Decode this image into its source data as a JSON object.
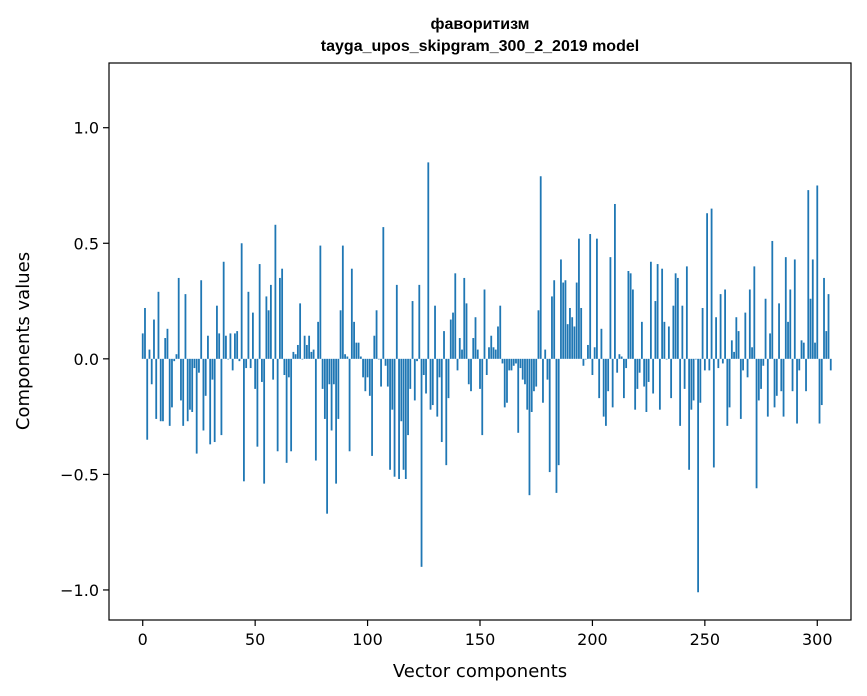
{
  "chart_data": {
    "type": "bar",
    "title": "фаворитизм",
    "subtitle": "tayga_upos_skipgram_300_2_2019 model",
    "xlabel": "Vector components",
    "ylabel": "Components values",
    "xlim": [
      -15,
      315
    ],
    "ylim": [
      -1.13,
      1.28
    ],
    "xticks": [
      0,
      50,
      100,
      150,
      200,
      250,
      300
    ],
    "xtick_labels": [
      "0",
      "50",
      "100",
      "150",
      "200",
      "250",
      "300"
    ],
    "yticks": [
      -1.0,
      -0.5,
      0.0,
      0.5,
      1.0
    ],
    "ytick_labels": [
      "−1.0",
      "−0.5",
      "0.0",
      "0.5",
      "1.0"
    ],
    "grid": false,
    "bar_color": "#1f77b4",
    "values": [
      0.11,
      0.22,
      -0.35,
      0.04,
      -0.11,
      0.17,
      -0.26,
      0.29,
      -0.27,
      -0.27,
      0.09,
      0.13,
      -0.29,
      -0.21,
      -0.01,
      0.02,
      0.35,
      -0.18,
      -0.29,
      0.28,
      -0.27,
      -0.22,
      -0.23,
      -0.04,
      -0.41,
      -0.06,
      0.34,
      -0.31,
      -0.16,
      0.1,
      -0.37,
      -0.09,
      -0.36,
      0.23,
      0.11,
      -0.33,
      0.42,
      0.1,
      0.0,
      0.11,
      -0.05,
      0.11,
      0.12,
      -0.01,
      0.5,
      -0.53,
      -0.04,
      0.29,
      -0.04,
      0.2,
      -0.13,
      -0.38,
      0.41,
      -0.1,
      -0.54,
      0.27,
      0.21,
      0.32,
      -0.09,
      0.58,
      -0.4,
      0.35,
      0.39,
      -0.07,
      -0.45,
      -0.08,
      -0.4,
      0.03,
      0.02,
      0.06,
      0.24,
      0.0,
      0.1,
      0.06,
      0.1,
      0.03,
      0.04,
      -0.44,
      0.16,
      0.49,
      -0.13,
      -0.26,
      -0.67,
      -0.11,
      -0.31,
      -0.11,
      -0.54,
      -0.26,
      0.21,
      0.49,
      0.02,
      0.01,
      -0.4,
      0.39,
      0.16,
      0.07,
      0.07,
      0.01,
      -0.08,
      -0.14,
      -0.08,
      -0.16,
      -0.42,
      0.1,
      0.21,
      0.0,
      -0.12,
      0.57,
      -0.03,
      -0.12,
      -0.48,
      -0.22,
      -0.51,
      0.32,
      -0.52,
      -0.27,
      -0.48,
      -0.52,
      -0.33,
      -0.13,
      0.25,
      -0.18,
      -0.01,
      0.32,
      -0.9,
      -0.07,
      -0.15,
      0.85,
      -0.22,
      -0.2,
      0.23,
      -0.25,
      -0.08,
      -0.36,
      0.12,
      -0.46,
      -0.17,
      0.17,
      0.2,
      0.37,
      -0.05,
      0.09,
      0.04,
      0.35,
      0.24,
      -0.11,
      -0.14,
      0.09,
      0.18,
      0.04,
      -0.13,
      -0.33,
      0.3,
      -0.07,
      0.05,
      0.1,
      0.05,
      0.04,
      0.14,
      0.23,
      -0.02,
      -0.21,
      -0.19,
      -0.05,
      -0.05,
      -0.03,
      -0.02,
      -0.32,
      -0.04,
      -0.09,
      -0.11,
      -0.22,
      -0.59,
      -0.23,
      -0.14,
      -0.12,
      0.21,
      0.79,
      -0.19,
      0.04,
      -0.09,
      -0.49,
      0.27,
      0.34,
      -0.58,
      -0.46,
      0.43,
      0.33,
      0.34,
      0.15,
      0.22,
      0.18,
      0.14,
      0.33,
      0.52,
      0.22,
      -0.03,
      0.0,
      0.06,
      0.54,
      -0.07,
      0.05,
      0.52,
      -0.17,
      0.13,
      -0.25,
      -0.29,
      -0.14,
      0.44,
      -0.21,
      0.67,
      -0.06,
      0.02,
      0.01,
      -0.17,
      -0.04,
      0.38,
      0.37,
      0.3,
      -0.22,
      -0.13,
      -0.06,
      0.16,
      -0.12,
      -0.23,
      -0.1,
      0.42,
      -0.15,
      0.25,
      0.41,
      -0.22,
      0.39,
      0.16,
      0.0,
      0.14,
      -0.17,
      0.23,
      0.37,
      0.35,
      -0.29,
      0.23,
      -0.13,
      0.4,
      -0.48,
      -0.22,
      -0.18,
      0.0,
      -1.01,
      -0.19,
      0.22,
      -0.05,
      0.63,
      -0.05,
      0.65,
      -0.47,
      0.18,
      -0.04,
      0.28,
      -0.02,
      0.3,
      -0.29,
      -0.21,
      0.08,
      0.03,
      0.18,
      0.12,
      -0.26,
      -0.05,
      0.2,
      -0.08,
      0.3,
      0.05,
      0.4,
      -0.56,
      -0.18,
      -0.13,
      -0.03,
      0.26,
      -0.25,
      0.11,
      0.51,
      -0.21,
      -0.16,
      0.24,
      -0.14,
      -0.25,
      0.44,
      0.16,
      0.3,
      -0.14,
      0.43,
      -0.28,
      -0.05,
      0.08,
      0.07,
      -0.14,
      0.73,
      0.26,
      0.43,
      0.07,
      0.75,
      -0.28,
      -0.2,
      0.35,
      0.12,
      0.28,
      -0.05
    ]
  }
}
